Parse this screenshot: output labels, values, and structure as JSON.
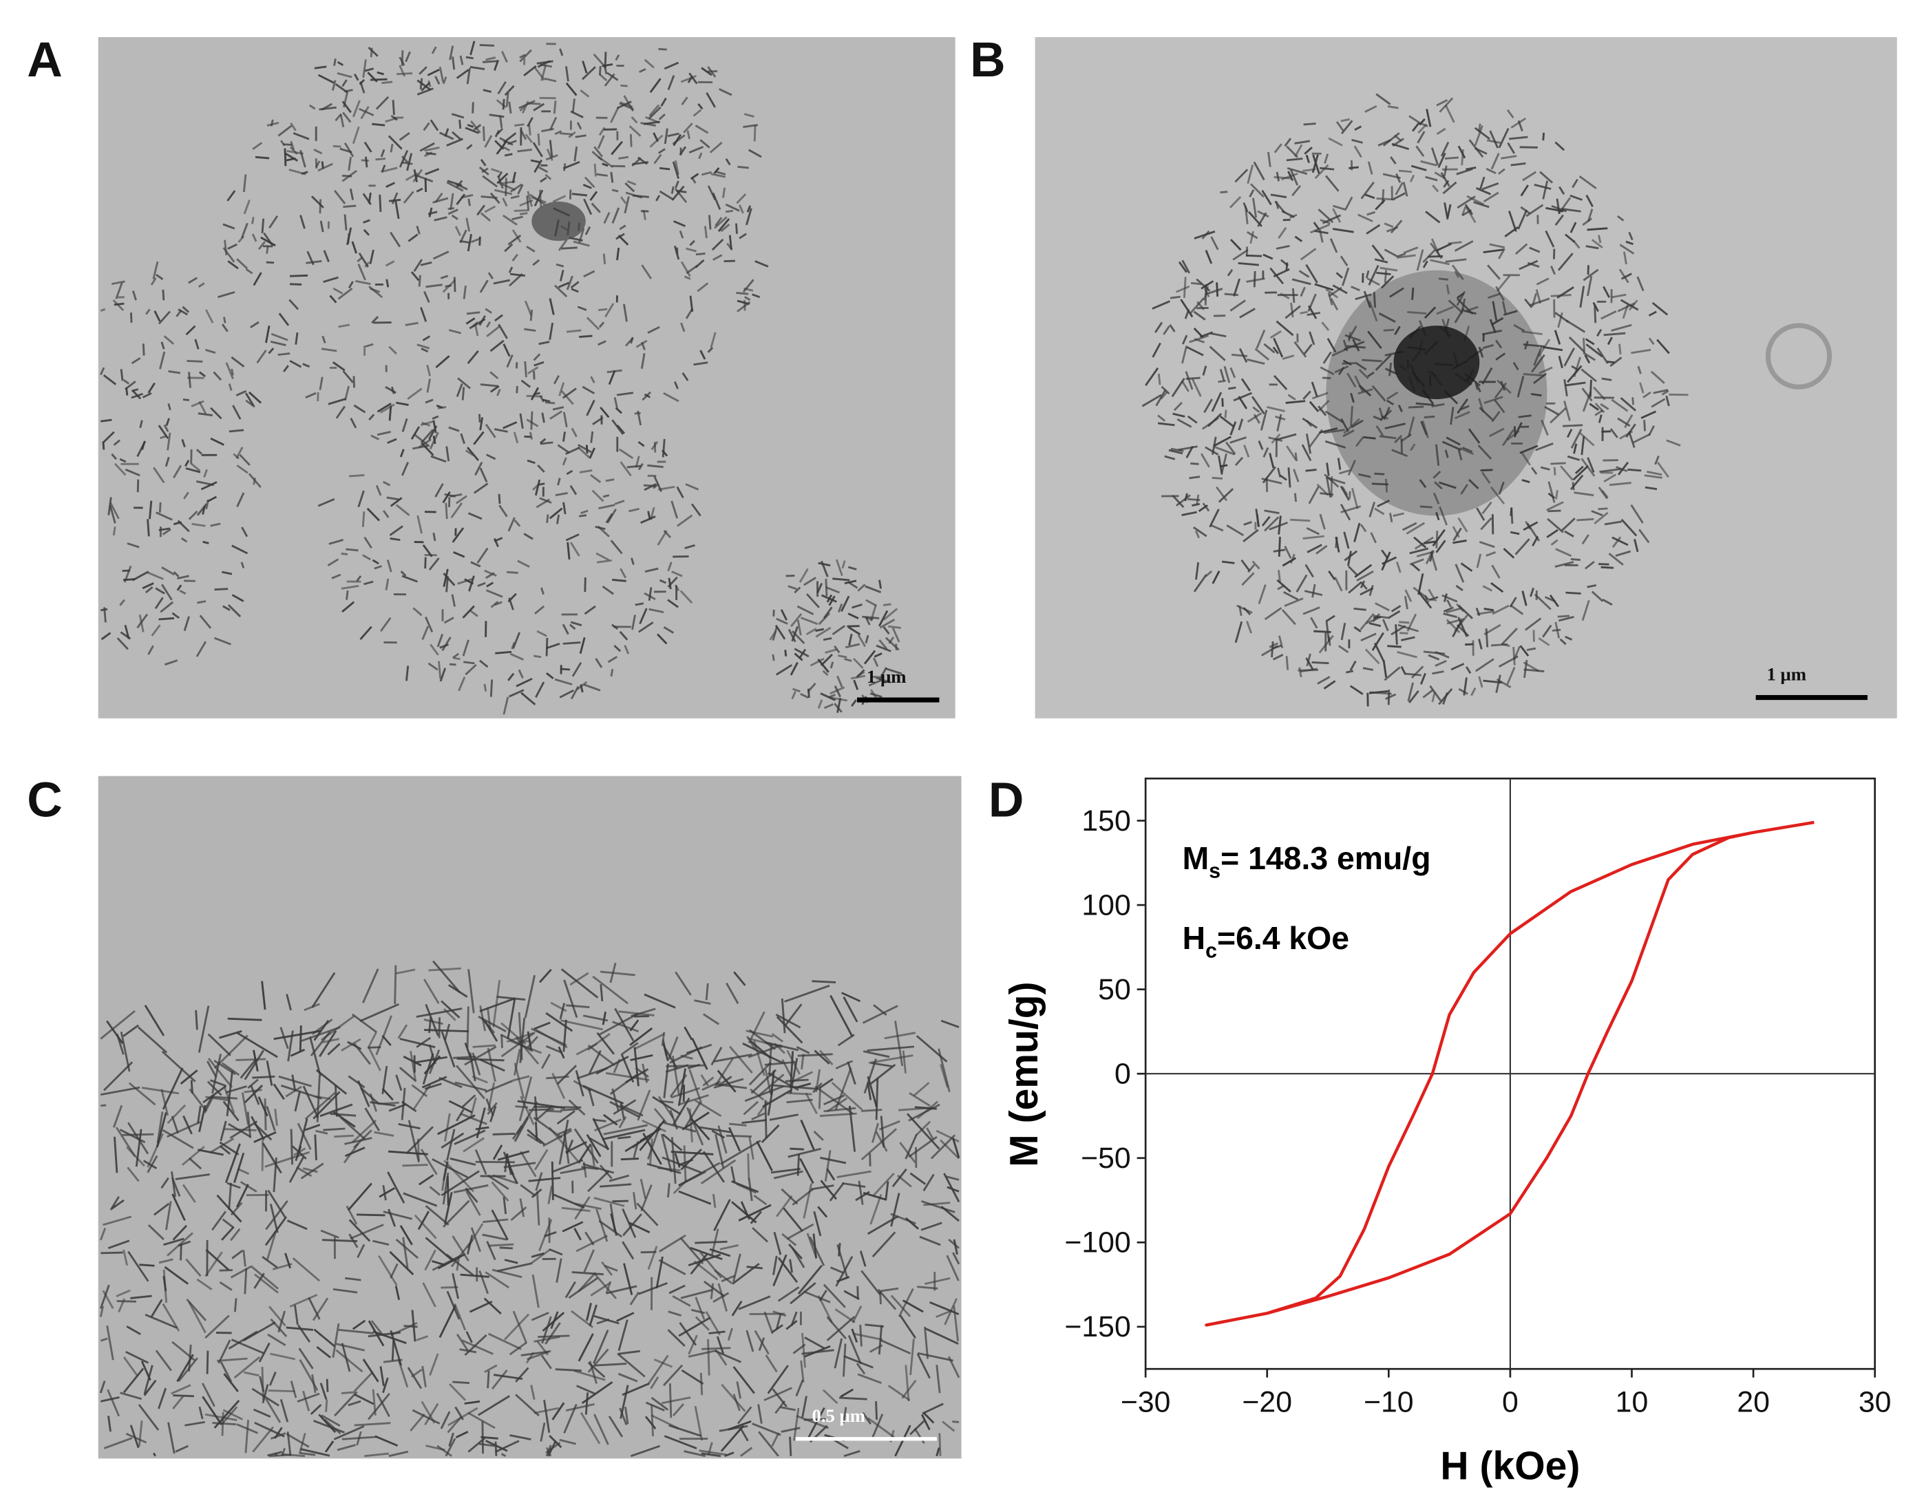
{
  "panels": [
    {
      "label": "A",
      "scale_bar": "1 μm"
    },
    {
      "label": "B",
      "scale_bar": "1 μm"
    },
    {
      "label": "C",
      "scale_bar": "0.5 μm"
    },
    {
      "label": "D"
    }
  ],
  "chart_data": {
    "type": "line",
    "x_label": "H (kOe)",
    "y_label": "M (emu/g)",
    "annotations": [
      {
        "main": "M",
        "sub": "s",
        "rest": "= 148.3 emu/g"
      },
      {
        "main": "H",
        "sub": "c",
        "rest": "=6.4 kOe"
      }
    ],
    "xlim": [
      -30,
      30
    ],
    "ylim": [
      -175,
      175
    ],
    "xticks": [
      {
        "value": -30,
        "label": "−30"
      },
      {
        "value": -20,
        "label": "−20"
      },
      {
        "value": -10,
        "label": "−10"
      },
      0,
      10,
      20,
      30
    ],
    "yticks": [
      {
        "value": -150,
        "label": "−150"
      },
      {
        "value": -100,
        "label": "−100"
      },
      {
        "value": -50,
        "label": "−50"
      },
      0,
      50,
      100,
      150
    ],
    "zero_lines": true,
    "series": [
      {
        "color": "#e0201c",
        "x": [
          25,
          20,
          15,
          10,
          5,
          0,
          -3,
          -5,
          -6.4,
          -8,
          -10,
          -12,
          -14,
          -16,
          -20,
          -25,
          -20,
          -15,
          -10,
          -5,
          0,
          3,
          5,
          6.4,
          8,
          10,
          12,
          13,
          15,
          18,
          20,
          25
        ],
        "values": [
          149,
          143,
          136,
          124,
          108,
          83,
          60,
          35,
          0,
          -25,
          -55,
          -92,
          -120,
          -133,
          -142,
          -149,
          -142,
          -132,
          -121,
          -107,
          -83,
          -50,
          -25,
          0,
          25,
          55,
          95,
          115,
          130,
          140,
          143,
          149
        ]
      }
    ]
  }
}
